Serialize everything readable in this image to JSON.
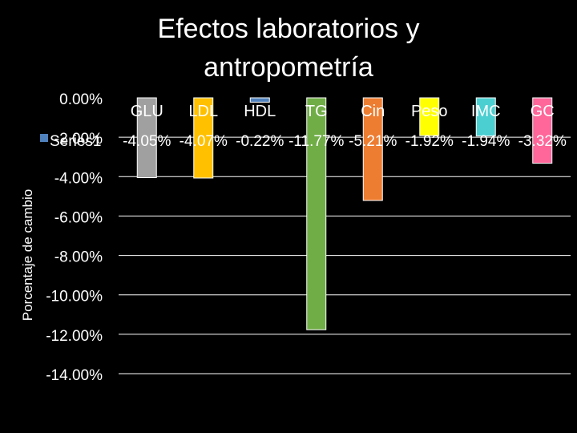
{
  "chart_data": {
    "type": "bar",
    "title_lines": [
      "Efectos laboratorios y",
      "antropometría"
    ],
    "ylabel": "Porcentaje de cambio",
    "ylim": [
      -14,
      0
    ],
    "y_ticks": [
      0,
      -2,
      -4,
      -6,
      -8,
      -10,
      -12,
      -14
    ],
    "y_tick_labels": [
      "0.00%",
      "-2.00%",
      "-4.00%",
      "-6.00%",
      "-8.00%",
      "-10.00%",
      "-12.00%",
      "-14.00%"
    ],
    "grid": true,
    "legend_position": "left",
    "categories": [
      "GLU",
      "LDL",
      "HDL",
      "TG",
      "Cin",
      "Peso",
      "IMC",
      "GC"
    ],
    "series": [
      {
        "name": "Series1",
        "values": [
          -4.05,
          -4.07,
          -0.22,
          -11.77,
          -5.21,
          -1.92,
          -1.94,
          -3.32
        ],
        "value_labels": [
          "-4.05%",
          "-4.07%",
          "-0.22%",
          "-11.77%",
          "-5.21%",
          "-1.92%",
          "-1.94%",
          "-3.32%"
        ]
      }
    ],
    "bar_colors": [
      "#a0a0a0",
      "#ffc000",
      "#4f81bd",
      "#70ad47",
      "#ed7d31",
      "#ffff00",
      "#4bcfd1",
      "#ff6699"
    ]
  }
}
